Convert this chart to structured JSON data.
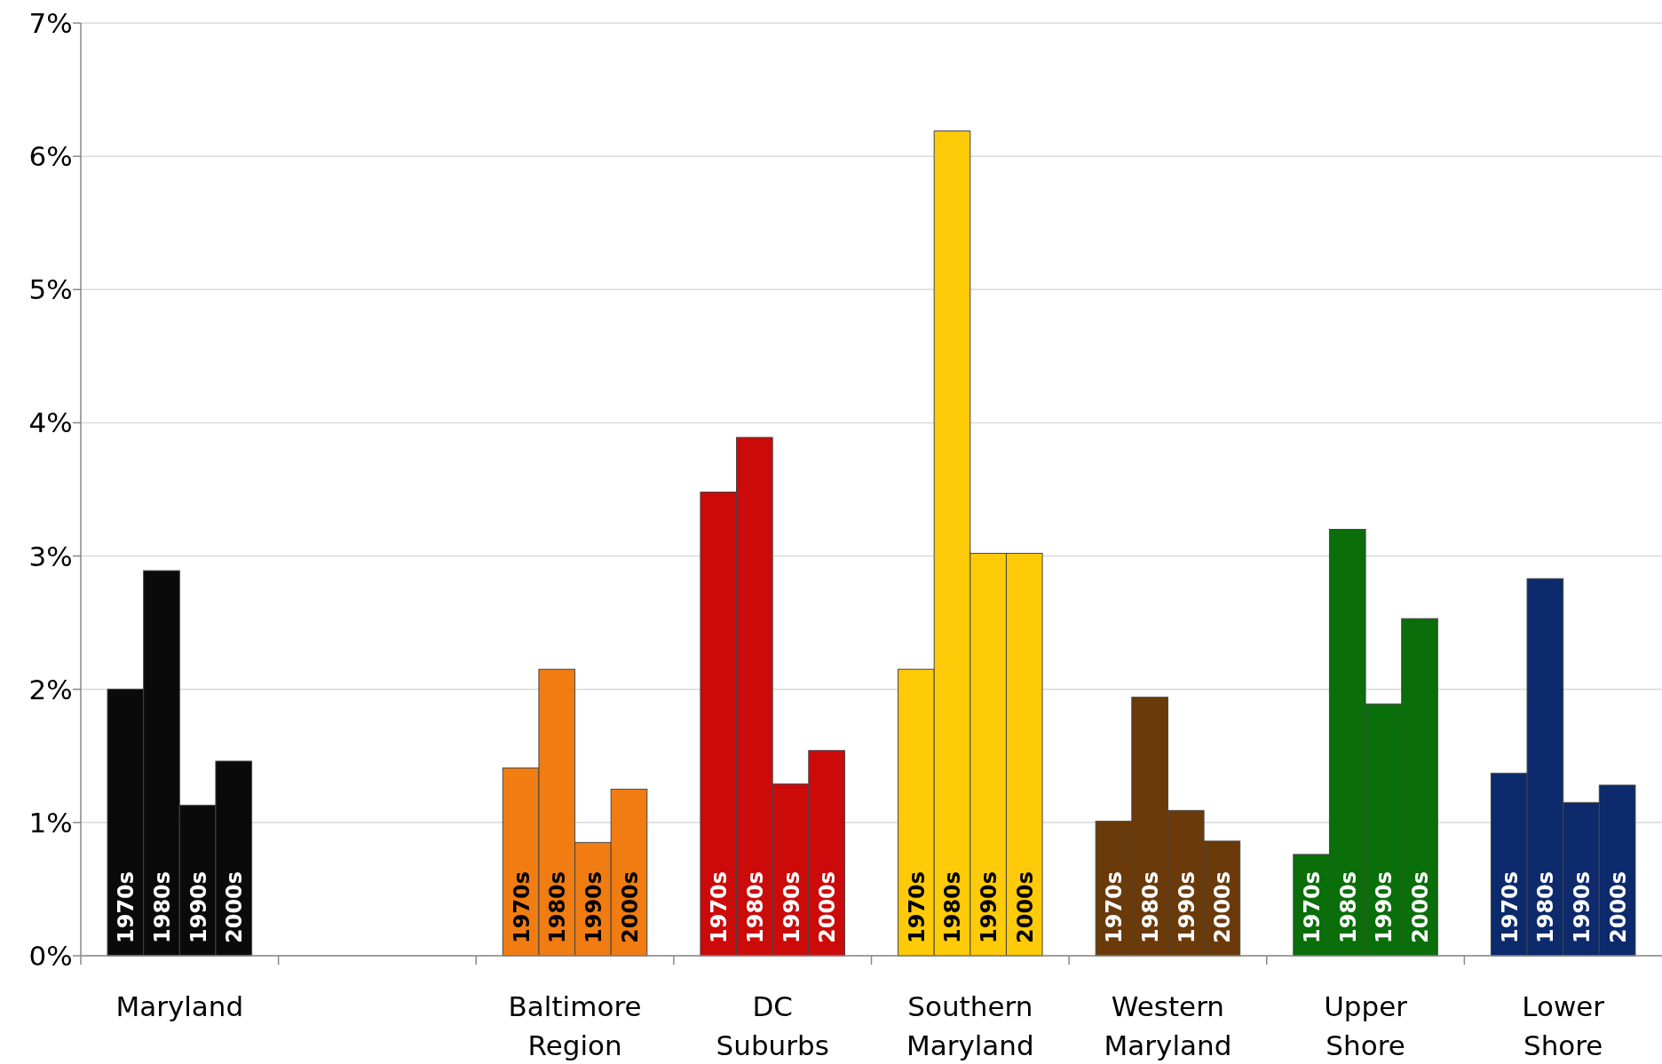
{
  "chart_data": {
    "type": "bar",
    "categories": [
      "Maryland",
      null,
      "Baltimore Region",
      "DC Suburbs",
      "Southern Maryland",
      "Western Maryland",
      "Upper Shore",
      "Lower Shore"
    ],
    "series": [
      {
        "name": "1970s",
        "colors": [
          "#0a0a0a",
          null,
          "#f07c12",
          "#cc0a0a",
          "#ffcb08",
          "#6b3a0a",
          "#0a6e0a",
          "#0c2a6c"
        ],
        "values": [
          2.0,
          null,
          1.41,
          3.48,
          2.15,
          1.01,
          0.76,
          1.37
        ]
      },
      {
        "name": "1980s",
        "colors": [
          "#0a0a0a",
          null,
          "#f07c12",
          "#cc0a0a",
          "#ffcb08",
          "#6b3a0a",
          "#0a6e0a",
          "#0c2a6c"
        ],
        "values": [
          2.89,
          null,
          2.15,
          3.89,
          6.19,
          1.94,
          3.2,
          2.83
        ]
      },
      {
        "name": "1990s",
        "colors": [
          "#0a0a0a",
          null,
          "#f07c12",
          "#cc0a0a",
          "#ffcb08",
          "#6b3a0a",
          "#0a6e0a",
          "#0c2a6c"
        ],
        "values": [
          1.13,
          null,
          0.85,
          1.29,
          3.02,
          1.09,
          1.89,
          1.15
        ]
      },
      {
        "name": "2000s",
        "colors": [
          "#0a0a0a",
          null,
          "#f07c12",
          "#cc0a0a",
          "#ffcb08",
          "#6b3a0a",
          "#0a6e0a",
          "#0c2a6c"
        ],
        "values": [
          1.46,
          null,
          1.25,
          1.54,
          3.02,
          0.86,
          2.53,
          1.28
        ]
      }
    ],
    "ylim": [
      0,
      7
    ],
    "yticks": [
      {
        "value": 0,
        "label": "0%"
      },
      {
        "value": 1,
        "label": "1%"
      },
      {
        "value": 2,
        "label": "2%"
      },
      {
        "value": 3,
        "label": "3%"
      },
      {
        "value": 4,
        "label": "4%"
      },
      {
        "value": 5,
        "label": "5%"
      },
      {
        "value": 6,
        "label": "6%"
      },
      {
        "value": 7,
        "label": "7%"
      }
    ],
    "grid": "y"
  }
}
